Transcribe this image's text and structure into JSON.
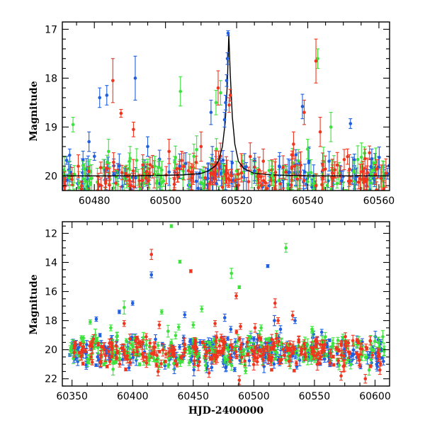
{
  "chart_data": [
    {
      "type": "scatter",
      "title": "",
      "xlabel": "",
      "ylabel": "Magnitude",
      "xlim": [
        60471,
        60563
      ],
      "ylim": [
        20.3,
        16.85
      ],
      "y_inverted": true,
      "xticks": [
        60480,
        60500,
        60520,
        60540,
        60560
      ],
      "yticks": [
        17,
        18,
        19,
        20
      ],
      "grid": false,
      "colors": {
        "blue": "#1f5fe0",
        "green": "#3de23d",
        "red": "#f0351e",
        "model": "#000000"
      },
      "model_curve": {
        "x": [
          60471,
          60490,
          60505,
          60510,
          60512,
          60514,
          60515,
          60516,
          60516.8,
          60517.4,
          60517.8,
          60518.2,
          60518.8,
          60519.5,
          60520.5,
          60522,
          60525,
          60530,
          60540,
          60563
        ],
        "y": [
          20.0,
          20.0,
          19.98,
          19.95,
          19.9,
          19.8,
          19.68,
          19.4,
          18.9,
          18.1,
          17.1,
          17.9,
          18.8,
          19.35,
          19.7,
          19.85,
          19.95,
          19.98,
          20.0,
          20.0
        ]
      },
      "series": [
        {
          "color": "blue",
          "points": [
            [
              60481.5,
              18.4,
              0.2
            ],
            [
              60483.5,
              18.35,
              0.2
            ],
            [
              60491.5,
              18.0,
              0.45
            ],
            [
              60512.8,
              18.7,
              0.25
            ],
            [
              60517.6,
              17.08,
              0.05
            ],
            [
              60517.4,
              17.6,
              0.12
            ],
            [
              60517.2,
              18.05,
              0.12
            ],
            [
              60516.9,
              18.5,
              0.15
            ],
            [
              60516.6,
              18.85,
              0.15
            ],
            [
              60538.5,
              18.58,
              0.25
            ],
            [
              60552,
              18.93,
              0.1
            ],
            [
              60478.5,
              19.3,
              0.2
            ],
            [
              60487,
              19.8,
              0.25
            ],
            [
              60495,
              19.4,
              0.2
            ],
            [
              60504,
              19.8,
              0.25
            ],
            [
              60525,
              19.9,
              0.2
            ],
            [
              60532,
              19.8,
              0.2
            ],
            [
              60546,
              19.7,
              0.2
            ],
            [
              60558,
              19.65,
              0.2
            ],
            [
              60549.5,
              20.1,
              0.2
            ]
          ]
        },
        {
          "color": "green",
          "points": [
            [
              60474,
              18.95,
              0.15
            ],
            [
              60504.2,
              18.27,
              0.3
            ],
            [
              60514.2,
              18.5,
              0.25
            ],
            [
              60515.5,
              18.3,
              0.25
            ],
            [
              60542.8,
              17.6,
              0.2
            ],
            [
              60546.5,
              19.0,
              0.3
            ],
            [
              60484,
              19.5,
              0.25
            ],
            [
              60497,
              19.8,
              0.2
            ],
            [
              60508,
              19.6,
              0.25
            ],
            [
              60530,
              20.0,
              0.2
            ],
            [
              60553,
              19.9,
              0.2
            ]
          ]
        },
        {
          "color": "red",
          "points": [
            [
              60485.2,
              18.05,
              0.45
            ],
            [
              60487.5,
              18.72,
              0.08
            ],
            [
              60491,
              19.05,
              0.15
            ],
            [
              60514.8,
              18.2,
              0.35
            ],
            [
              60517.9,
              18.55,
              0.15
            ],
            [
              60518.2,
              18.35,
              0.12
            ],
            [
              60542.3,
              17.65,
              0.45
            ],
            [
              60536,
              19.35,
              0.25
            ],
            [
              60539,
              18.7,
              0.25
            ],
            [
              60543.5,
              19.1,
              0.3
            ],
            [
              60501,
              19.5,
              0.25
            ],
            [
              60510,
              19.4,
              0.3
            ],
            [
              60527.5,
              19.7,
              0.25
            ],
            [
              60555.5,
              19.9,
              0.2
            ]
          ]
        }
      ],
      "dense_band": {
        "x_range": [
          60471,
          60563
        ],
        "y_center": 20.02,
        "y_spread": 0.33,
        "n_per_series": 150
      }
    },
    {
      "type": "scatter",
      "title": "",
      "xlabel": "HJD-2400000",
      "ylabel": "Magnitude",
      "xlim": [
        60342,
        60612
      ],
      "ylim": [
        22.5,
        11.2
      ],
      "y_inverted": true,
      "xticks": [
        60350,
        60400,
        60450,
        60500,
        60550,
        60600
      ],
      "yticks": [
        12,
        14,
        16,
        18,
        20,
        22
      ],
      "grid": false,
      "colors": {
        "blue": "#1f5fe0",
        "green": "#3de23d",
        "red": "#f0351e"
      },
      "series": [
        {
          "color": "blue",
          "points": [
            [
              60415.5,
              14.85,
              0.2
            ],
            [
              60400,
              16.8,
              0.15
            ],
            [
              60389,
              17.4,
              0.12
            ],
            [
              60370,
              17.9,
              0.15
            ],
            [
              60443,
              17.6,
              0.2
            ],
            [
              60476,
              17.8,
              0.25
            ],
            [
              60511.5,
              14.25,
              0.1
            ],
            [
              60517,
              18.0,
              0.35
            ],
            [
              60534,
              18.0,
              0.2
            ],
            [
              60481,
              18.6,
              0.2
            ],
            [
              60522,
              18.6,
              0.25
            ],
            [
              60556,
              18.8,
              0.2
            ]
          ]
        },
        {
          "color": "green",
          "points": [
            [
              60432,
              11.5,
              0.1
            ],
            [
              60526.5,
              13.0,
              0.3
            ],
            [
              60439,
              13.95,
              0.1
            ],
            [
              60481.5,
              14.75,
              0.35
            ],
            [
              60488,
              15.7,
              0.1
            ],
            [
              60393,
              17.1,
              0.45
            ],
            [
              60424,
              17.4,
              0.15
            ],
            [
              60457,
              17.2,
              0.2
            ],
            [
              60365,
              18.1,
              0.15
            ],
            [
              60382,
              18.5,
              0.2
            ],
            [
              60438,
              18.45,
              0.2
            ],
            [
              60450,
              18.3,
              0.2
            ],
            [
              60506,
              18.5,
              0.2
            ],
            [
              60548,
              18.6,
              0.2
            ]
          ]
        },
        {
          "color": "red",
          "points": [
            [
              60415.5,
              13.45,
              0.35
            ],
            [
              60448,
              14.6,
              0.1
            ],
            [
              60485.5,
              16.3,
              0.2
            ],
            [
              60517.5,
              16.8,
              0.3
            ],
            [
              60532,
              17.65,
              0.3
            ],
            [
              60393,
              18.2,
              0.2
            ],
            [
              60422,
              18.3,
              0.25
            ],
            [
              60468,
              18.2,
              0.2
            ],
            [
              60489,
              18.4,
              0.2
            ],
            [
              60501,
              18.5,
              0.3
            ],
            [
              60520,
              18.0,
              0.2
            ],
            [
              60572,
              21.8,
              0.3
            ],
            [
              60592,
              22.0,
              0.3
            ],
            [
              60604,
              21.4,
              0.3
            ],
            [
              60421,
              21.5,
              0.3
            ],
            [
              60463,
              21.6,
              0.3
            ],
            [
              60488,
              22.1,
              0.3
            ]
          ]
        }
      ],
      "dense_band": {
        "x_range": [
          60348,
          60608
        ],
        "y_center": 20.15,
        "y_spread": 0.75,
        "n_per_series": 260
      }
    }
  ]
}
